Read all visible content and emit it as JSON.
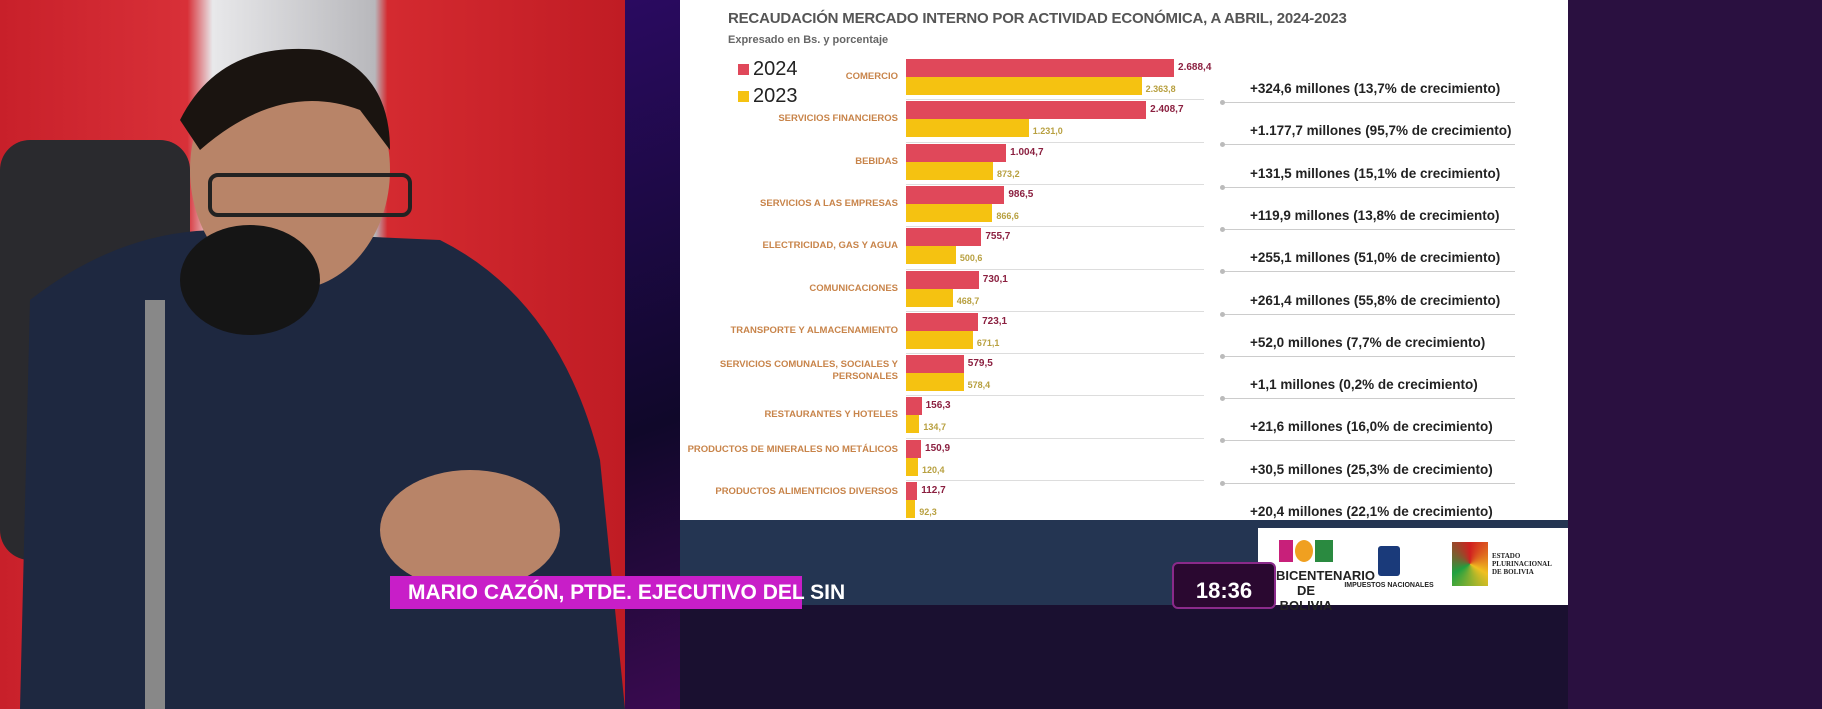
{
  "broadcast": {
    "lower_third": "MARIO CAZÓN, PTDE. EJECUTIVO DEL SIN",
    "clock": "18:36"
  },
  "logos": {
    "bicentenario": "BICENTENARIO DE BOLIVIA",
    "impuestos": "IMPUESTOS NACIONALES",
    "estado": "ESTADO PLURINACIONAL DE BOLIVIA"
  },
  "colors": {
    "series_2024": "#e0485a",
    "series_2023": "#f5c211",
    "navy": "#243552",
    "lower_third": "#c81ec8"
  },
  "chart_data": {
    "type": "bar",
    "orientation": "horizontal",
    "title": "RECAUDACIÓN MERCADO INTERNO POR ACTIVIDAD ECONÓMICA, A ABRIL, 2024-2023",
    "subtitle": "Expresado en Bs. y porcentaje",
    "legend_position": "top-left",
    "categories": [
      "COMERCIO",
      "SERVICIOS FINANCIEROS",
      "BEBIDAS",
      "SERVICIOS A LAS EMPRESAS",
      "ELECTRICIDAD, GAS Y AGUA",
      "COMUNICACIONES",
      "TRANSPORTE Y ALMACENAMIENTO",
      "SERVICIOS COMUNALES, SOCIALES Y PERSONALES",
      "RESTAURANTES Y HOTELES",
      "PRODUCTOS DE MINERALES NO METÁLICOS",
      "PRODUCTOS ALIMENTICIOS DIVERSOS"
    ],
    "series": [
      {
        "name": "2024",
        "values": [
          2688.4,
          2408.7,
          1004.7,
          986.5,
          755.7,
          730.1,
          723.1,
          579.5,
          156.3,
          150.9,
          112.7
        ],
        "labels": [
          "2.688,4",
          "2.408,7",
          "1.004,7",
          "986,5",
          "755,7",
          "730,1",
          "723,1",
          "579,5",
          "156,3",
          "150,9",
          "112,7"
        ]
      },
      {
        "name": "2023",
        "values": [
          2363.8,
          1231.0,
          873.2,
          866.6,
          500.6,
          468.7,
          671.1,
          578.4,
          134.7,
          120.4,
          92.3
        ],
        "labels": [
          "2.363,8",
          "1.231,0",
          "873,2",
          "866,6",
          "500,6",
          "468,7",
          "671,1",
          "578,4",
          "134,7",
          "120,4",
          "92,3"
        ]
      }
    ],
    "annotations": [
      "+324,6 millones (13,7% de crecimiento)",
      "+1.177,7 millones (95,7% de crecimiento)",
      "+131,5 millones (15,1% de crecimiento)",
      "+119,9 millones (13,8% de crecimiento)",
      "+255,1 millones (51,0% de crecimiento)",
      "+261,4 millones (55,8% de crecimiento)",
      "+52,0 millones (7,7% de crecimiento)",
      "+1,1 millones (0,2% de crecimiento)",
      "+21,6 millones (16,0% de crecimiento)",
      "+30,5 millones (25,3% de crecimiento)",
      "+20,4 millones (22,1% de crecimiento)"
    ],
    "grid": false
  }
}
